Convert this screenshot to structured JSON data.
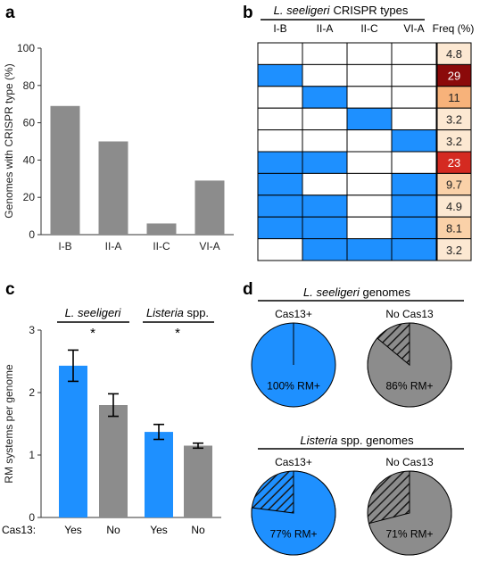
{
  "colors": {
    "blue": "#1E90FF",
    "gray": "#8C8C8C",
    "freq_scale": [
      "#FCE8D2",
      "#FAD1A8",
      "#F7B27A",
      "#D42A21",
      "#8B0A0A"
    ]
  },
  "chart_data": [
    {
      "panel": "a",
      "type": "bar",
      "categories": [
        "I-B",
        "II-A",
        "II-C",
        "VI-A"
      ],
      "values": [
        69,
        50,
        6,
        29
      ],
      "ylabel": "Genomes with CRISPR type (%)",
      "ylim": [
        0,
        100
      ],
      "yticks": [
        "0",
        "20",
        "40",
        "60",
        "80",
        "100"
      ],
      "grid": false
    },
    {
      "panel": "b",
      "type": "table",
      "title_italic": "L. seeligeri",
      "title_rest": "CRISPR types",
      "columns": [
        "I-B",
        "II-A",
        "II-C",
        "VI-A"
      ],
      "freq_header": "Freq (%)",
      "rows": [
        {
          "presence": [
            0,
            0,
            0,
            0
          ],
          "freq": "4.8"
        },
        {
          "presence": [
            1,
            0,
            0,
            0
          ],
          "freq": "29"
        },
        {
          "presence": [
            0,
            1,
            0,
            0
          ],
          "freq": "11"
        },
        {
          "presence": [
            0,
            0,
            1,
            0
          ],
          "freq": "3.2"
        },
        {
          "presence": [
            0,
            0,
            0,
            1
          ],
          "freq": "3.2"
        },
        {
          "presence": [
            1,
            1,
            0,
            0
          ],
          "freq": "23"
        },
        {
          "presence": [
            1,
            0,
            0,
            1
          ],
          "freq": "9.7"
        },
        {
          "presence": [
            1,
            1,
            0,
            1
          ],
          "freq": "4.9"
        },
        {
          "presence": [
            1,
            1,
            0,
            1
          ],
          "freq": "8.1"
        },
        {
          "presence": [
            0,
            1,
            1,
            1
          ],
          "freq": "3.2"
        }
      ]
    },
    {
      "panel": "c",
      "type": "bar",
      "groups": [
        {
          "label_italic": "L. seeligeri",
          "label_rest": "",
          "sig": "*"
        },
        {
          "label_italic": "Listeria",
          "label_rest": " spp.",
          "sig": "*"
        }
      ],
      "categories": [
        "Yes",
        "No",
        "Yes",
        "No"
      ],
      "values": [
        2.43,
        1.8,
        1.37,
        1.15
      ],
      "errors": [
        0.25,
        0.18,
        0.12,
        0.04
      ],
      "bar_colors": [
        "blue",
        "gray",
        "blue",
        "gray"
      ],
      "ylabel": "RM systems per genome",
      "ylim": [
        0,
        3
      ],
      "yticks": [
        "0",
        "1",
        "2",
        "3"
      ],
      "xlabel": "Cas13:"
    },
    {
      "panel": "d",
      "type": "pie",
      "sections": [
        {
          "title_italic": "L. seeligeri",
          "title_rest": " genomes",
          "pies": [
            {
              "label": "Cas13+",
              "color": "blue",
              "rm_percent": 100,
              "text": "100% RM+"
            },
            {
              "label": "No Cas13",
              "color": "gray",
              "rm_percent": 86,
              "text": "86% RM+"
            }
          ]
        },
        {
          "title_italic": "Listeria",
          "title_rest": " spp. genomes",
          "pies": [
            {
              "label": "Cas13+",
              "color": "blue",
              "rm_percent": 77,
              "text": "77% RM+"
            },
            {
              "label": "No Cas13",
              "color": "gray",
              "rm_percent": 71,
              "text": "71% RM+"
            }
          ]
        }
      ]
    }
  ],
  "panel_labels": [
    "a",
    "b",
    "c",
    "d"
  ]
}
